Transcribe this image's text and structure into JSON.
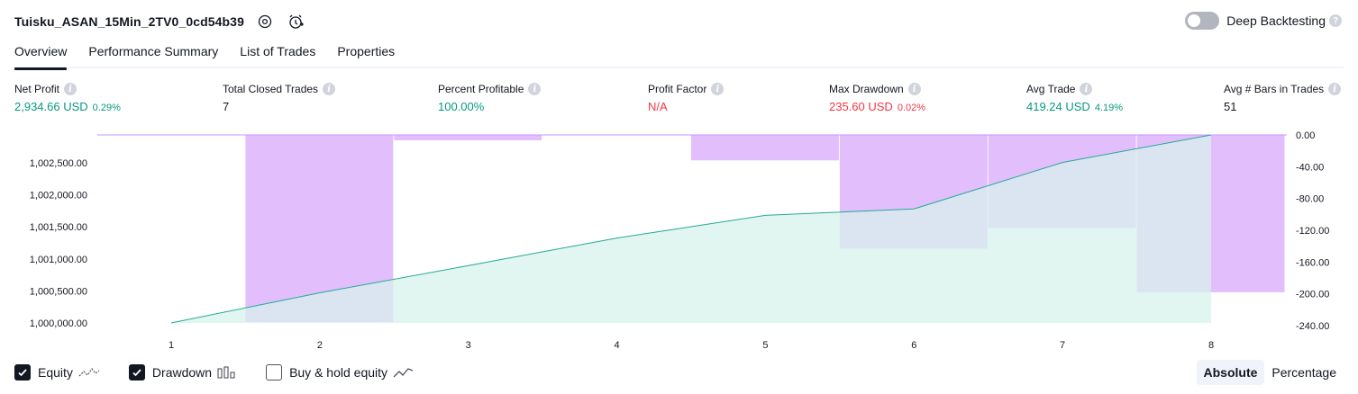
{
  "header": {
    "strategy_title": "Tuisku_ASAN_15Min_2TV0_0cd54b39",
    "deep_backtesting_label": "Deep Backtesting",
    "deep_backtesting_enabled": false
  },
  "tabs": [
    {
      "label": "Overview",
      "active": true
    },
    {
      "label": "Performance Summary",
      "active": false
    },
    {
      "label": "List of Trades",
      "active": false
    },
    {
      "label": "Properties",
      "active": false
    }
  ],
  "metrics": [
    {
      "label": "Net Profit",
      "value": "2,934.66 USD",
      "pct": "0.29%",
      "tone": "pos"
    },
    {
      "label": "Total Closed Trades",
      "value": "7",
      "pct": "",
      "tone": "neutral"
    },
    {
      "label": "Percent Profitable",
      "value": "100.00%",
      "pct": "",
      "tone": "pos"
    },
    {
      "label": "Profit Factor",
      "value": "N/A",
      "pct": "",
      "tone": "neg"
    },
    {
      "label": "Max Drawdown",
      "value": "235.60 USD",
      "pct": "0.02%",
      "tone": "neg"
    },
    {
      "label": "Avg Trade",
      "value": "419.24 USD",
      "pct": "4.19%",
      "tone": "pos"
    },
    {
      "label": "Avg # Bars in Trades",
      "value": "51",
      "pct": "",
      "tone": "neutral"
    }
  ],
  "colors": {
    "equity_line": "#22ab94",
    "equity_fill": "#d7f1ec",
    "drawdown_fill": "#ce93fc",
    "positive": "#089981",
    "negative": "#f23645"
  },
  "chart_data": {
    "type": "line",
    "x": [
      1,
      2,
      3,
      4,
      5,
      6,
      7,
      8
    ],
    "x_ticks": [
      "1",
      "2",
      "3",
      "4",
      "5",
      "6",
      "7",
      "8"
    ],
    "series": [
      {
        "name": "Equity",
        "axis": "left",
        "values": [
          1000000,
          1000470,
          1000895,
          1001325,
          1001680,
          1001780,
          1002505,
          1002935
        ]
      },
      {
        "name": "Drawdown",
        "axis": "right",
        "type": "bar",
        "values": [
          0,
          -235.6,
          -6.8,
          0,
          -32,
          -143,
          -117,
          -198
        ]
      }
    ],
    "left_ticks": [
      "1,000,000.00",
      "1,000,500.00",
      "1,001,000.00",
      "1,001,500.00",
      "1,002,000.00",
      "1,002,500.00"
    ],
    "left_tick_values": [
      1000000,
      1000500,
      1001000,
      1001500,
      1002000,
      1002500
    ],
    "right_ticks": [
      "0.00",
      "-40.00",
      "-80.00",
      "-120.00",
      "-160.00",
      "-200.00",
      "-240.00"
    ],
    "right_tick_values": [
      0,
      -40,
      -80,
      -120,
      -160,
      -200,
      -240
    ],
    "ylim_left": [
      1000000,
      1002935
    ],
    "ylim_right": [
      -240,
      0
    ],
    "grid": false
  },
  "legend": [
    {
      "label": "Equity",
      "checked": true,
      "icon": "equity-line-icon"
    },
    {
      "label": "Drawdown",
      "checked": true,
      "icon": "drawdown-bars-icon"
    },
    {
      "label": "Buy & hold equity",
      "checked": false,
      "icon": "buy-hold-line-icon"
    }
  ],
  "mode": {
    "absolute_label": "Absolute",
    "percentage_label": "Percentage",
    "selected": "Absolute"
  }
}
